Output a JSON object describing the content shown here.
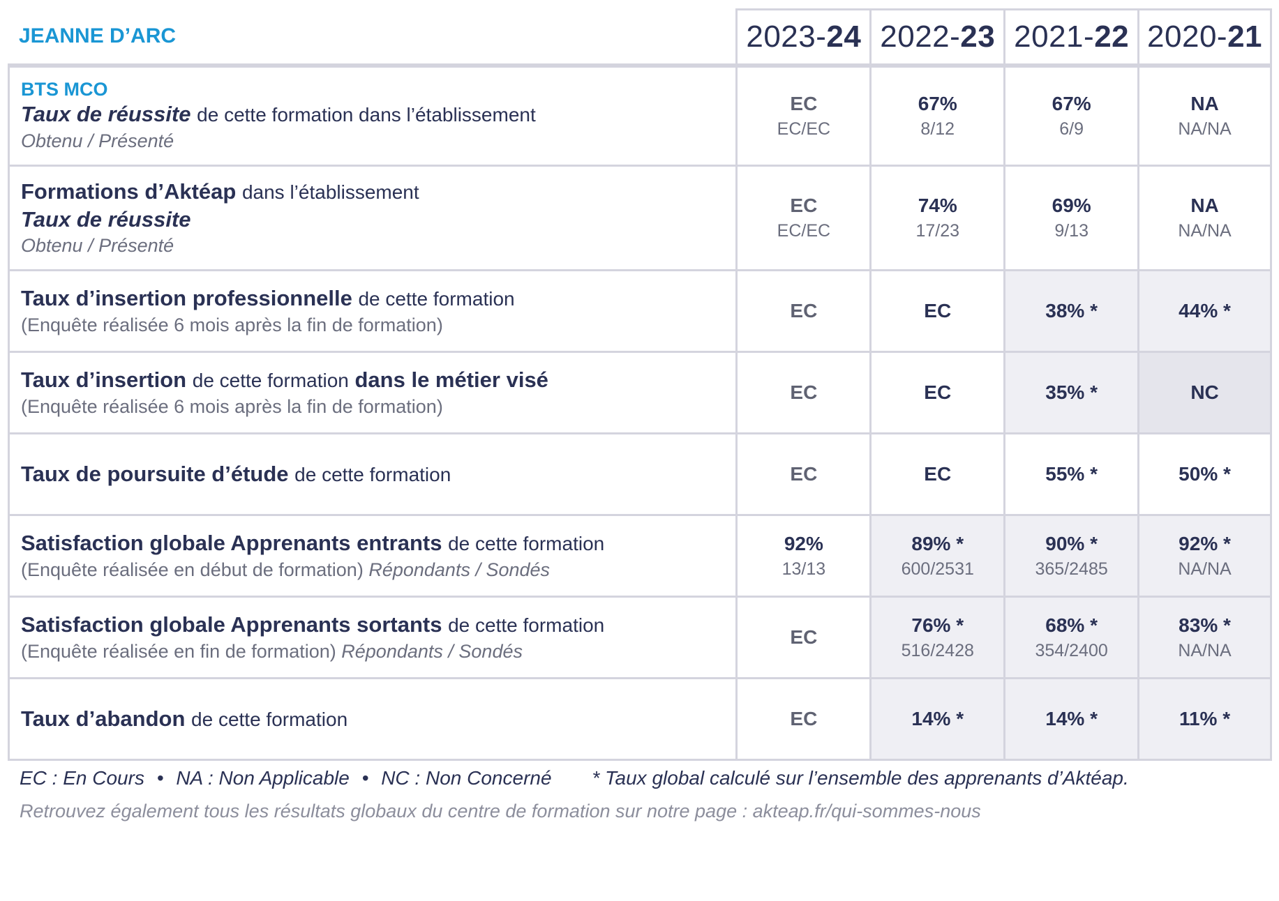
{
  "header": {
    "school": "JEANNE D’ARC",
    "years": [
      {
        "pre": "2023-",
        "bold": "24"
      },
      {
        "pre": "2022-",
        "bold": "23"
      },
      {
        "pre": "2021-",
        "bold": "22"
      },
      {
        "pre": "2020-",
        "bold": "21"
      }
    ]
  },
  "rows": [
    {
      "program": "BTS MCO",
      "line1_emph": "Taux de réussite",
      "line1_rest": "de cette formation dans l’établissement",
      "line2": "Obtenu / Présenté",
      "cells": [
        {
          "v": "EC",
          "r": "EC/EC"
        },
        {
          "v": "67%",
          "r": "8/12"
        },
        {
          "v": "67%",
          "r": "6/9"
        },
        {
          "v": "NA",
          "r": "NA/NA"
        }
      ]
    },
    {
      "line1_emph": "Formations d’Aktéap",
      "line1_rest": "dans l’établissement",
      "line2_emph": "Taux de réussite",
      "line3": "Obtenu / Présenté",
      "cells": [
        {
          "v": "EC",
          "r": "EC/EC"
        },
        {
          "v": "74%",
          "r": "17/23"
        },
        {
          "v": "69%",
          "r": "9/13"
        },
        {
          "v": "NA",
          "r": "NA/NA"
        }
      ]
    },
    {
      "line1_emph": "Taux d’insertion professionnelle",
      "line1_rest": "de cette formation",
      "line2": "(Enquête réalisée 6 mois après la fin de formation)",
      "cells": [
        {
          "v": "EC"
        },
        {
          "v": "EC"
        },
        {
          "v": "38% *"
        },
        {
          "v": "44% *"
        }
      ]
    },
    {
      "line1_emph": "Taux d’insertion",
      "line1_rest": "de cette formation",
      "line1_emph2": "dans le métier visé",
      "line2": "(Enquête réalisée 6 mois après la fin de formation)",
      "cells": [
        {
          "v": "EC"
        },
        {
          "v": "EC"
        },
        {
          "v": "35% *"
        },
        {
          "v": "NC"
        }
      ]
    },
    {
      "line1_emph": "Taux de poursuite d’étude",
      "line1_rest": "de cette formation",
      "cells": [
        {
          "v": "EC"
        },
        {
          "v": "EC"
        },
        {
          "v": "55% *"
        },
        {
          "v": "50% *"
        }
      ]
    },
    {
      "line1_emph": "Satisfaction globale Apprenants entrants",
      "line1_rest": "de cette formation",
      "line2": "(Enquête réalisée en début de formation)",
      "line2_italic": "Répondants / Sondés",
      "cells": [
        {
          "v": "92%",
          "r": "13/13"
        },
        {
          "v": "89% *",
          "r": "600/2531"
        },
        {
          "v": "90% *",
          "r": "365/2485"
        },
        {
          "v": "92% *",
          "r": "NA/NA"
        }
      ]
    },
    {
      "line1_emph": "Satisfaction globale Apprenants sortants",
      "line1_rest": "de cette formation",
      "line2": "(Enquête réalisée en fin de formation)",
      "line2_italic": "Répondants / Sondés",
      "cells": [
        {
          "v": "EC"
        },
        {
          "v": "76% *",
          "r": "516/2428"
        },
        {
          "v": "68% *",
          "r": "354/2400"
        },
        {
          "v": "83% *",
          "r": "NA/NA"
        }
      ]
    },
    {
      "line1_emph": "Taux d’abandon",
      "line1_rest": "de cette formation",
      "cells": [
        {
          "v": "EC"
        },
        {
          "v": "14% *"
        },
        {
          "v": "14% *"
        },
        {
          "v": "11% *"
        }
      ]
    }
  ],
  "footer": {
    "legend_ec": "EC : En Cours",
    "legend_na": "NA : Non Applicable",
    "legend_nc": "NC : Non Concerné",
    "bullet": "•",
    "note": "* Taux global calculé sur l’ensemble des apprenants d’Aktéap.",
    "link_line": "Retrouvez également tous les résultats globaux du centre de formation sur notre page : akteap.fr/qui-sommes-nous"
  },
  "colors": {
    "accent_blue": "#1a96d4",
    "text_navy": "#2a3154",
    "border": "#d4d4de",
    "shade": "#efeff4",
    "shade_dark": "#e5e5ec"
  }
}
